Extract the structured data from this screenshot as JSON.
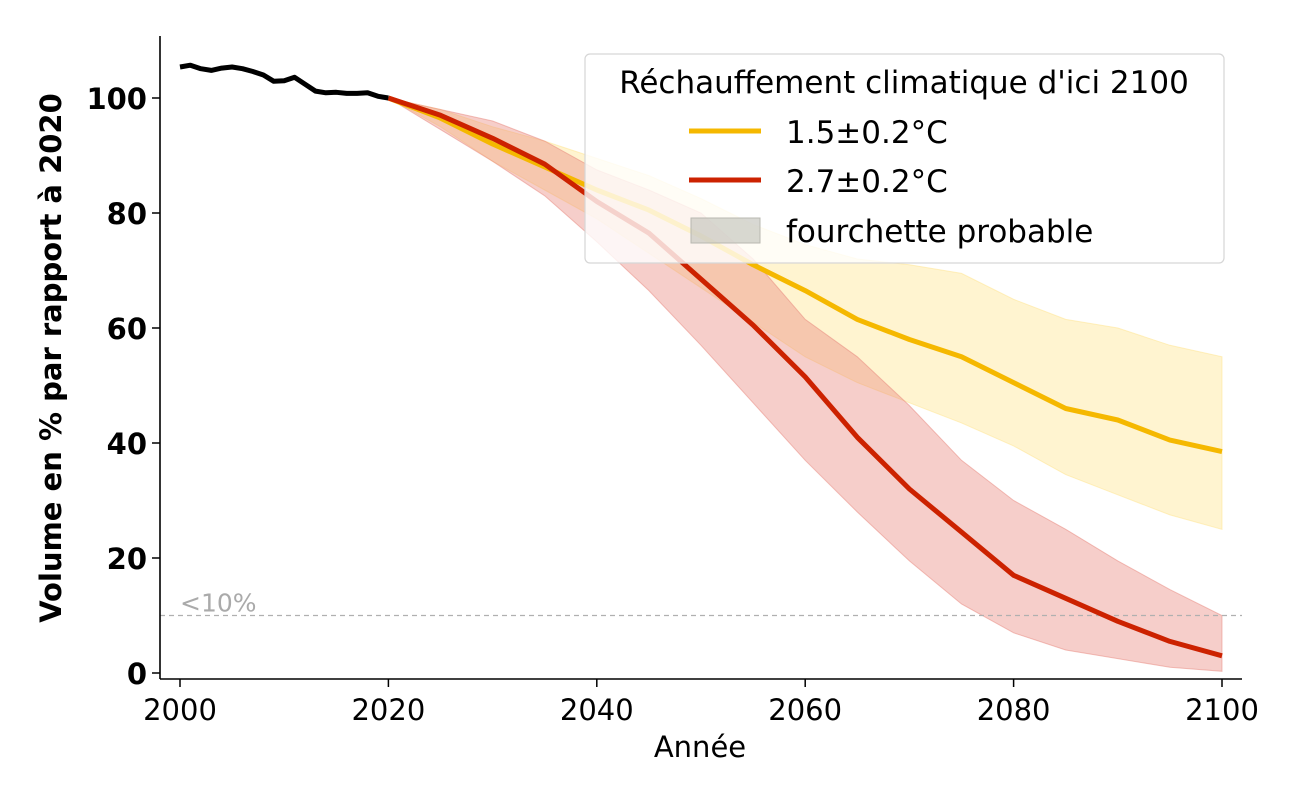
{
  "chart_data": {
    "type": "line",
    "title": "",
    "xlabel": "Année",
    "ylabel": "Volume en % par rapport à 2020",
    "xlim": [
      1998,
      2102
    ],
    "ylim": [
      -1,
      111
    ],
    "xticks": [
      2000,
      2020,
      2040,
      2060,
      2080,
      2100
    ],
    "yticks": [
      0,
      20,
      40,
      60,
      80,
      100
    ],
    "grid": false,
    "legend_position": "top-right",
    "legend_title": "Réchauffement climatique d'ici 2100",
    "legend_entries": [
      "1.5±0.2°C",
      "2.7±0.2°C",
      "fourchette probable"
    ],
    "threshold": {
      "y": 10,
      "label": "<10%"
    },
    "colors": {
      "observed": "#000000",
      "s15": "#f5b800",
      "s15_band": "#ffe38a",
      "s27": "#cc2200",
      "s27_band": "#e8847a",
      "band_legend": "#c8c8c0",
      "threshold": "#b0b0b0"
    },
    "observed": {
      "name": "observed",
      "x": [
        2000,
        2001,
        2002,
        2003,
        2004,
        2005,
        2006,
        2007,
        2008,
        2009,
        2010,
        2011,
        2012,
        2013,
        2014,
        2015,
        2016,
        2017,
        2018,
        2019,
        2020
      ],
      "values": [
        105.4,
        105.7,
        105.1,
        104.8,
        105.2,
        105.4,
        105.1,
        104.6,
        104.0,
        102.9,
        103.0,
        103.6,
        102.4,
        101.2,
        100.9,
        101.0,
        100.8,
        100.8,
        100.9,
        100.3,
        100.0
      ]
    },
    "series": [
      {
        "name": "1.5±0.2°C",
        "x": [
          2020,
          2025,
          2030,
          2035,
          2040,
          2045,
          2050,
          2055,
          2060,
          2065,
          2070,
          2075,
          2080,
          2085,
          2090,
          2095,
          2100
        ],
        "values": [
          100,
          96.5,
          92.0,
          88.0,
          84.0,
          80.5,
          76.0,
          71.0,
          66.5,
          61.5,
          58.0,
          55.0,
          50.5,
          46.0,
          44.0,
          40.5,
          38.5
        ],
        "lower": [
          100,
          95.0,
          89.0,
          84.0,
          79.0,
          73.0,
          67.0,
          61.0,
          55.0,
          50.5,
          47.0,
          43.5,
          39.5,
          34.5,
          31.0,
          27.5,
          25.0
        ],
        "upper": [
          100,
          98.0,
          95.0,
          92.5,
          89.5,
          86.5,
          82.5,
          78.0,
          74.5,
          72.0,
          71.0,
          69.5,
          65.0,
          61.5,
          60.0,
          57.0,
          55.0
        ]
      },
      {
        "name": "2.7±0.2°C",
        "x": [
          2020,
          2025,
          2030,
          2035,
          2040,
          2045,
          2050,
          2055,
          2060,
          2065,
          2070,
          2075,
          2080,
          2085,
          2090,
          2095,
          2100
        ],
        "values": [
          100,
          97.0,
          93.0,
          88.5,
          82.0,
          76.5,
          68.5,
          60.5,
          51.5,
          41.0,
          32.0,
          24.5,
          17.0,
          13.0,
          9.0,
          5.5,
          3.0
        ],
        "lower": [
          100,
          94.5,
          89.0,
          83.0,
          75.0,
          66.5,
          57.0,
          47.0,
          37.0,
          28.0,
          19.5,
          12.0,
          7.0,
          4.0,
          2.5,
          1.0,
          0.3
        ],
        "upper": [
          100,
          98.0,
          96.0,
          92.5,
          87.5,
          84.0,
          80.0,
          72.0,
          61.5,
          55.0,
          46.5,
          37.0,
          30.0,
          25.0,
          19.5,
          14.5,
          10.0
        ]
      }
    ]
  }
}
